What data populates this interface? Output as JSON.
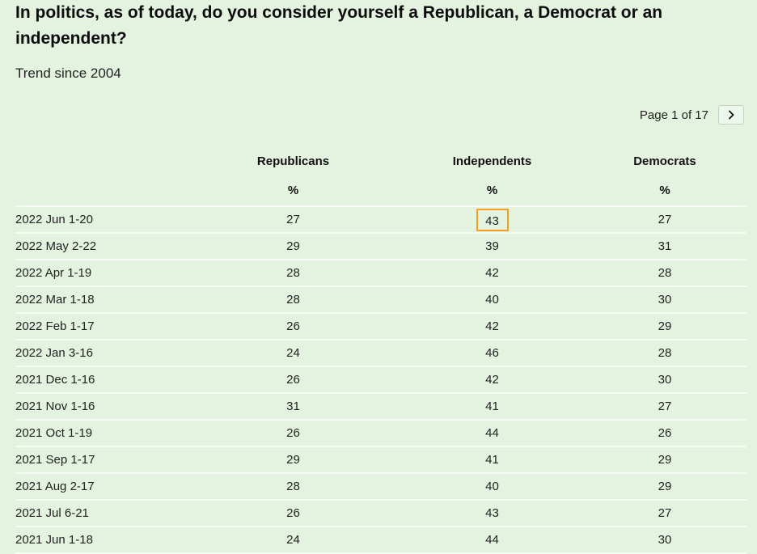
{
  "title": "In politics, as of today, do you consider yourself a Republican, a Democrat or an independent?",
  "subtitle": "Trend since 2004",
  "pager": {
    "text": "Page 1 of 17",
    "next_icon": "chevron-right-icon"
  },
  "colors": {
    "background": "#e4f2e0",
    "highlight_border": "#f5a01e"
  },
  "chart_data": {
    "type": "table",
    "columns": [
      "",
      "Republicans",
      "Independents",
      "Democrats"
    ],
    "units": [
      "",
      "%",
      "%",
      "%"
    ],
    "highlight": {
      "row": 0,
      "column": "Independents"
    },
    "rows": [
      {
        "date": "2022 Jun 1-20",
        "republicans": "27",
        "independents": "43",
        "democrats": "27"
      },
      {
        "date": "2022 May 2-22",
        "republicans": "29",
        "independents": "39",
        "democrats": "31"
      },
      {
        "date": "2022 Apr 1-19",
        "republicans": "28",
        "independents": "42",
        "democrats": "28"
      },
      {
        "date": "2022 Mar 1-18",
        "republicans": "28",
        "independents": "40",
        "democrats": "30"
      },
      {
        "date": "2022 Feb 1-17",
        "republicans": "26",
        "independents": "42",
        "democrats": "29"
      },
      {
        "date": "2022 Jan 3-16",
        "republicans": "24",
        "independents": "46",
        "democrats": "28"
      },
      {
        "date": "2021 Dec 1-16",
        "republicans": "26",
        "independents": "42",
        "democrats": "30"
      },
      {
        "date": "2021 Nov 1-16",
        "republicans": "31",
        "independents": "41",
        "democrats": "27"
      },
      {
        "date": "2021 Oct 1-19",
        "republicans": "26",
        "independents": "44",
        "democrats": "26"
      },
      {
        "date": "2021 Sep 1-17",
        "republicans": "29",
        "independents": "41",
        "democrats": "29"
      },
      {
        "date": "2021 Aug 2-17",
        "republicans": "28",
        "independents": "40",
        "democrats": "29"
      },
      {
        "date": "2021 Jul 6-21",
        "republicans": "26",
        "independents": "43",
        "democrats": "27"
      },
      {
        "date": "2021 Jun 1-18",
        "republicans": "24",
        "independents": "44",
        "democrats": "30"
      }
    ]
  }
}
